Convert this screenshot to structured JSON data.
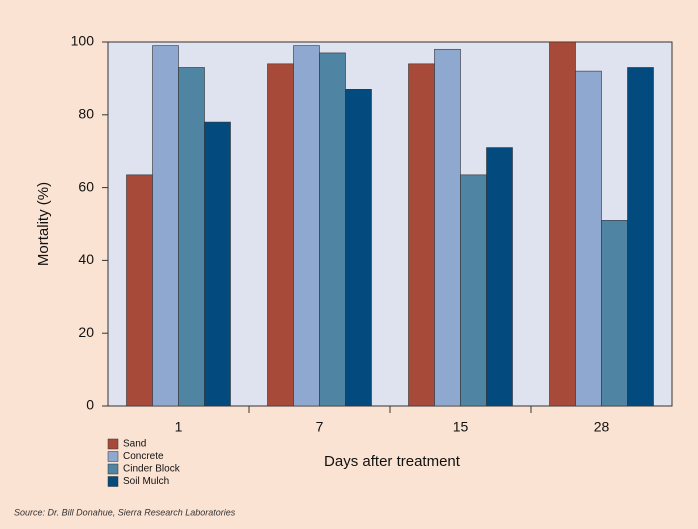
{
  "chart_data": {
    "type": "bar",
    "y_label": "Mortality  (%)",
    "x_label": "Days after treatment",
    "source": "Source: Dr. Bill Donahue, Sierra Research Laboratories",
    "categories": [
      "1",
      "7",
      "15",
      "28"
    ],
    "series": [
      {
        "name": "Sand",
        "color": "#a84a3a",
        "values": [
          63.5,
          94,
          94,
          100
        ]
      },
      {
        "name": "Concrete",
        "color": "#8fa8d0",
        "values": [
          99,
          99,
          98,
          92
        ]
      },
      {
        "name": "Cinder  Block",
        "color": "#4f84a2",
        "values": [
          93,
          97,
          63.5,
          51
        ]
      },
      {
        "name": "Soil Mulch",
        "color": "#034a7f",
        "values": [
          78,
          87,
          71,
          93
        ]
      }
    ],
    "ylim": [
      0,
      100
    ],
    "yticks": [
      0,
      20,
      40,
      60,
      80,
      100
    ]
  }
}
